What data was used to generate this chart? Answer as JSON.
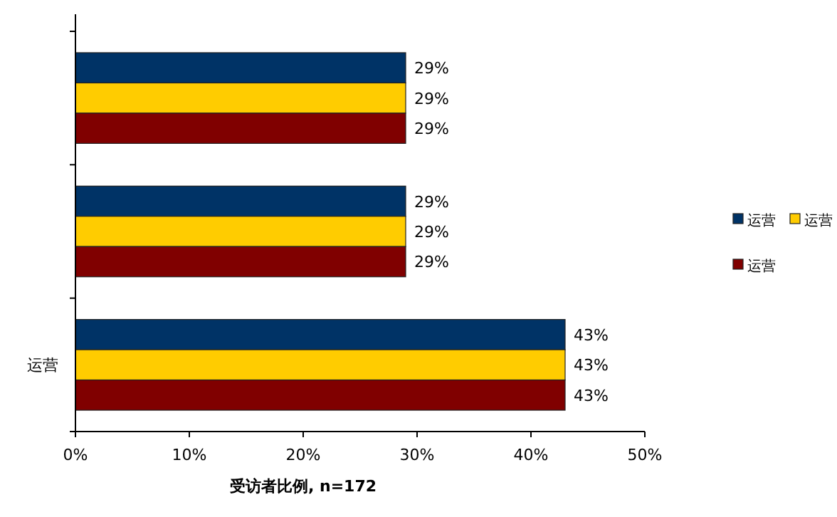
{
  "chart_data": {
    "type": "bar",
    "orientation": "horizontal",
    "xlabel": "受访者比例, n=172",
    "categories": [
      null,
      null,
      "运营"
    ],
    "series": [
      {
        "name": "运营",
        "color": "#003366",
        "values": [
          29,
          29,
          43
        ],
        "value_labels": [
          "29%",
          "29%",
          "43%"
        ]
      },
      {
        "name": "运营",
        "color": "#ffcc00",
        "values": [
          29,
          29,
          43
        ],
        "value_labels": [
          "29%",
          "29%",
          "43%"
        ]
      },
      {
        "name": "运营",
        "color": "#800000",
        "values": [
          29,
          29,
          43
        ],
        "value_labels": [
          "29%",
          "29%",
          "43%"
        ]
      }
    ],
    "xlim": [
      0,
      50
    ],
    "xticks": [
      {
        "value": 0,
        "label": "0%"
      },
      {
        "value": 10,
        "label": "10%"
      },
      {
        "value": 20,
        "label": "20%"
      },
      {
        "value": 30,
        "label": "30%"
      },
      {
        "value": 40,
        "label": "40%"
      },
      {
        "value": 50,
        "label": "50%"
      }
    ],
    "legend": "right"
  }
}
